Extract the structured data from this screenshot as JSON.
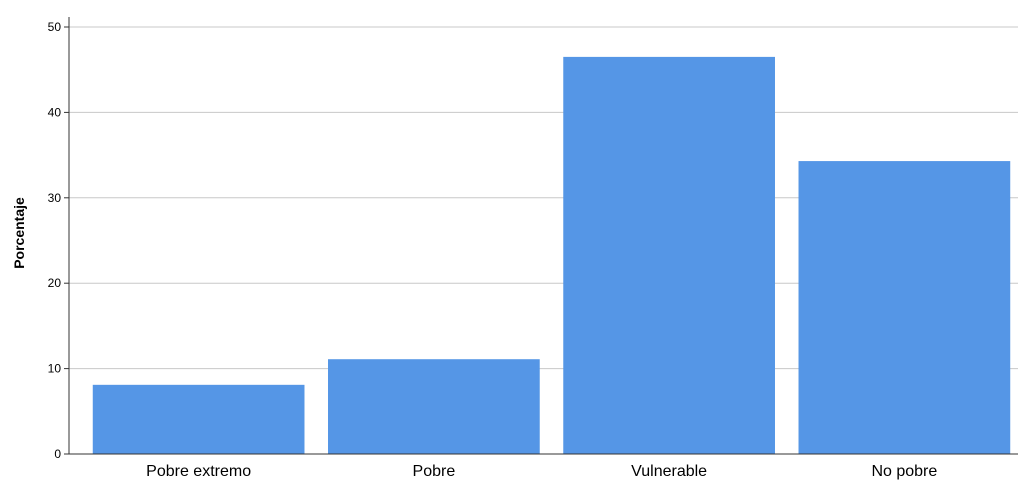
{
  "chart_data": {
    "type": "bar",
    "title": "",
    "xlabel": "",
    "ylabel": "Porcentaje",
    "categories": [
      "Pobre extremo",
      "Pobre",
      "Vulnerable",
      "No pobre"
    ],
    "values": [
      8.1,
      11.1,
      46.5,
      34.3
    ],
    "ylim": [
      0,
      50
    ],
    "yticks": [
      "0",
      "10",
      "20",
      "30",
      "40",
      "50"
    ],
    "grid": "horizontal",
    "legend": "none",
    "colors": {
      "bar": "#5596e6",
      "grid": "#c8c8c8",
      "axis": "#333333"
    }
  }
}
